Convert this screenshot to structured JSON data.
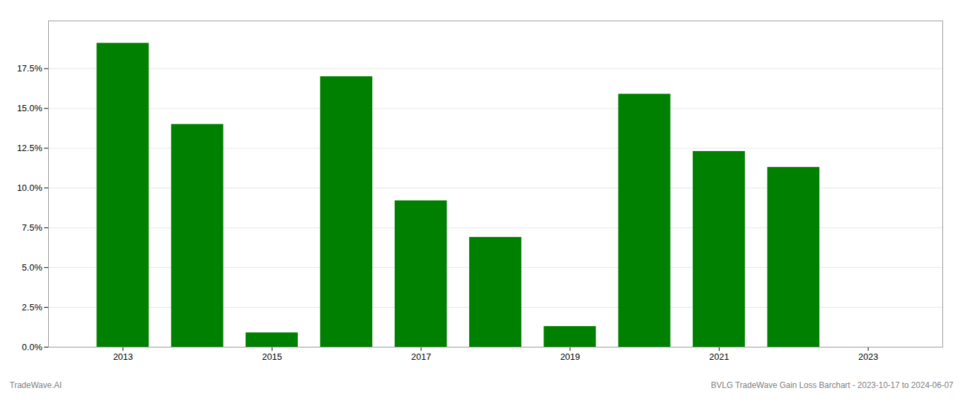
{
  "chart_data": {
    "type": "bar",
    "x": [
      2013,
      2014,
      2015,
      2016,
      2017,
      2018,
      2019,
      2020,
      2021,
      2022
    ],
    "values": [
      0.191,
      0.14,
      0.009,
      0.17,
      0.092,
      0.069,
      0.013,
      0.159,
      0.123,
      0.113
    ],
    "color": "#008000",
    "xlim": [
      2012.0,
      2024.0
    ],
    "xticks": [
      2013,
      2015,
      2017,
      2019,
      2021,
      2023
    ],
    "ylim": [
      0,
      0.205
    ],
    "yticks": [
      {
        "value": 0.0,
        "label": "0.0%"
      },
      {
        "value": 0.025,
        "label": "2.5%"
      },
      {
        "value": 0.05,
        "label": "5.0%"
      },
      {
        "value": 0.075,
        "label": "7.5%"
      },
      {
        "value": 0.1,
        "label": "10.0%"
      },
      {
        "value": 0.125,
        "label": "12.5%"
      },
      {
        "value": 0.15,
        "label": "15.0%"
      },
      {
        "value": 0.175,
        "label": "17.5%"
      }
    ],
    "grid": true,
    "annotations": [
      "TradeWave.AI",
      "BVLG TradeWave Gain Loss Barchart - 2023-10-17 to 2024-06-07"
    ]
  }
}
